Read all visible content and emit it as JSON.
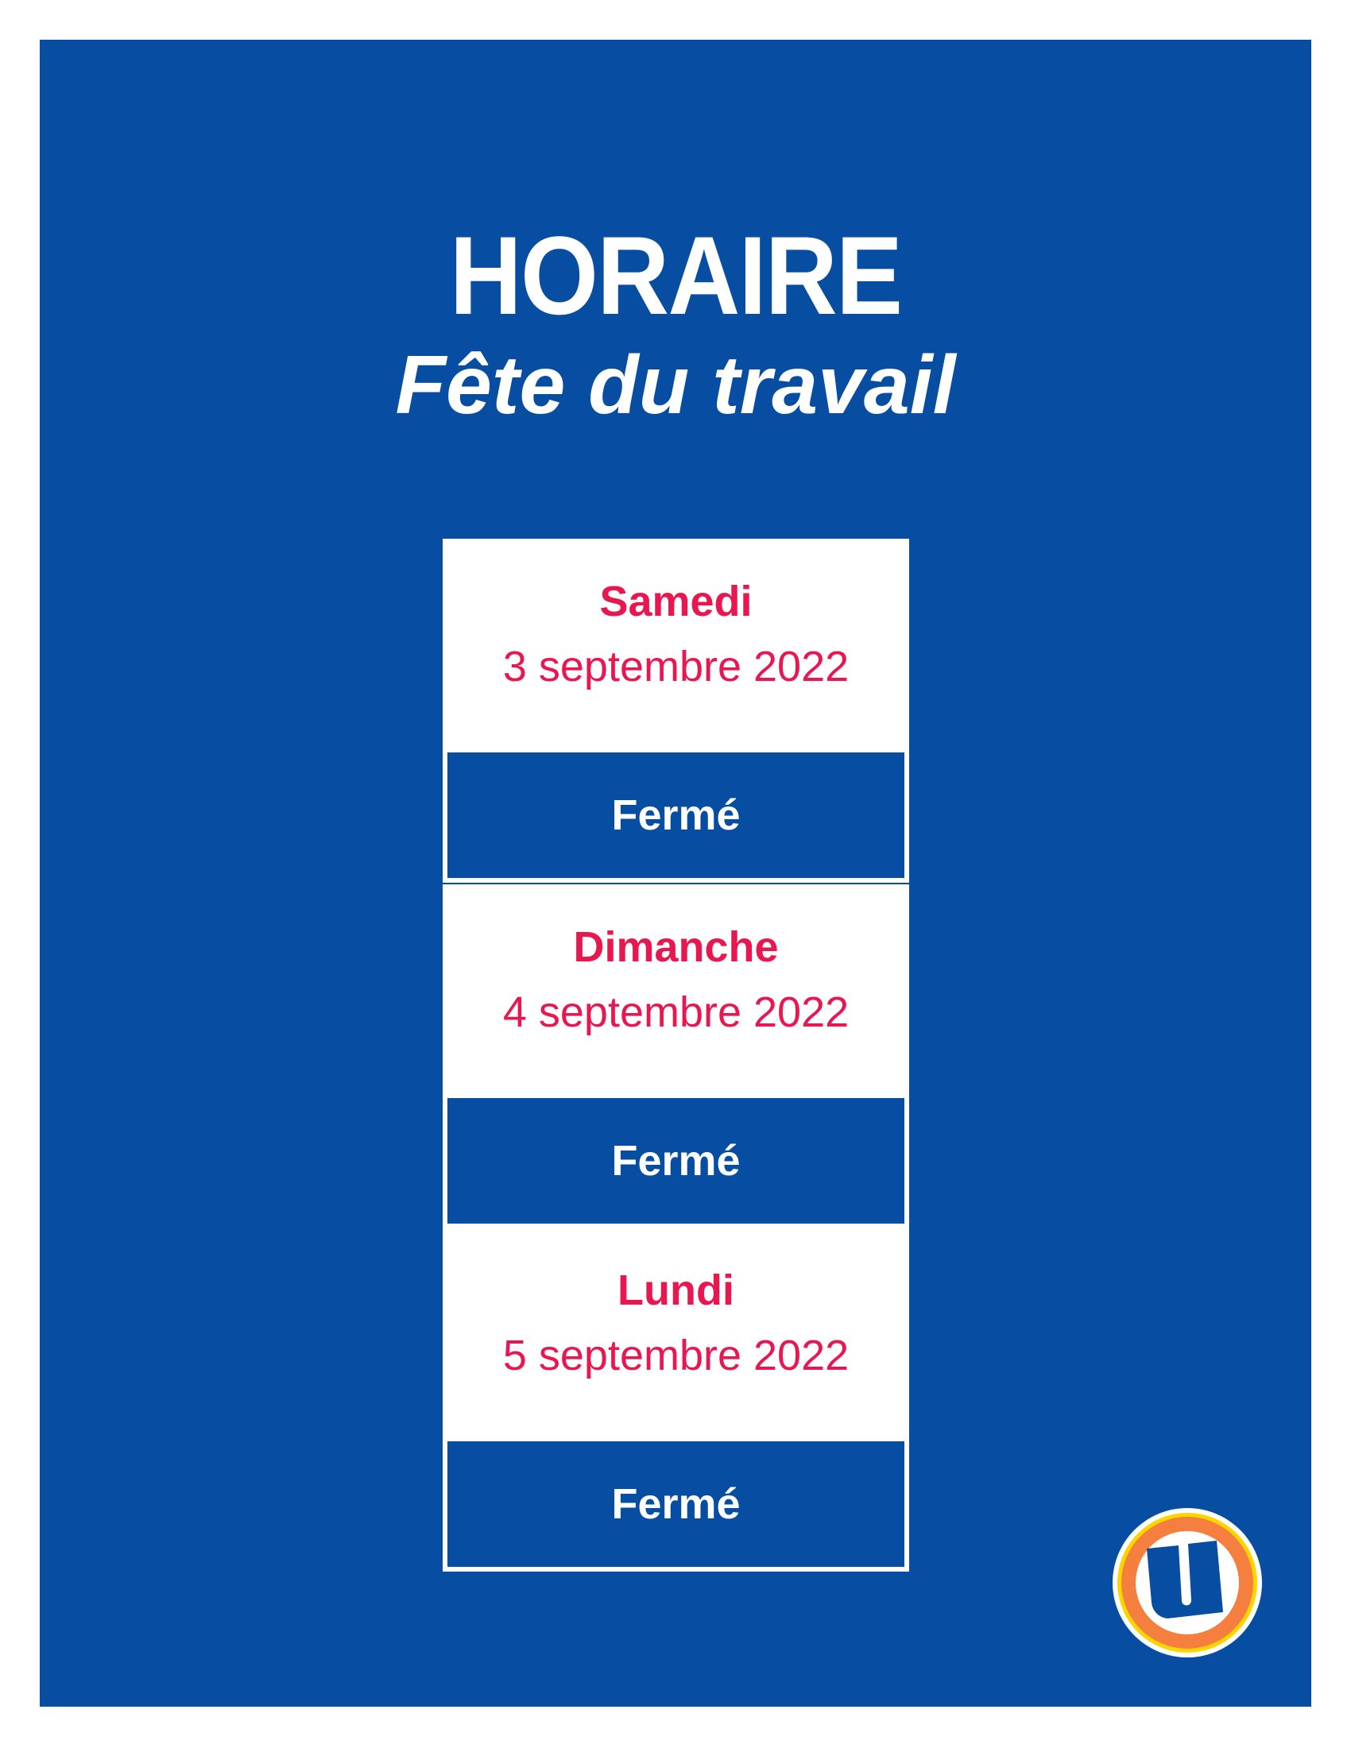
{
  "header": {
    "title": "HORAIRE",
    "subtitle": "Fête du travail"
  },
  "days": [
    {
      "day": "Samedi",
      "date": "3 septembre 2022",
      "status": "Fermé"
    },
    {
      "day": "Dimanche",
      "date": "4 septembre 2022",
      "status": "Fermé"
    },
    {
      "day": "Lundi",
      "date": "5 septembre 2022",
      "status": "Fermé"
    }
  ],
  "colors": {
    "background": "#074ea3",
    "accent": "#e8174f",
    "logo_orange": "#f47f3e",
    "logo_yellow": "#ffd500"
  },
  "logo": {
    "icon": "u-logo-icon"
  }
}
